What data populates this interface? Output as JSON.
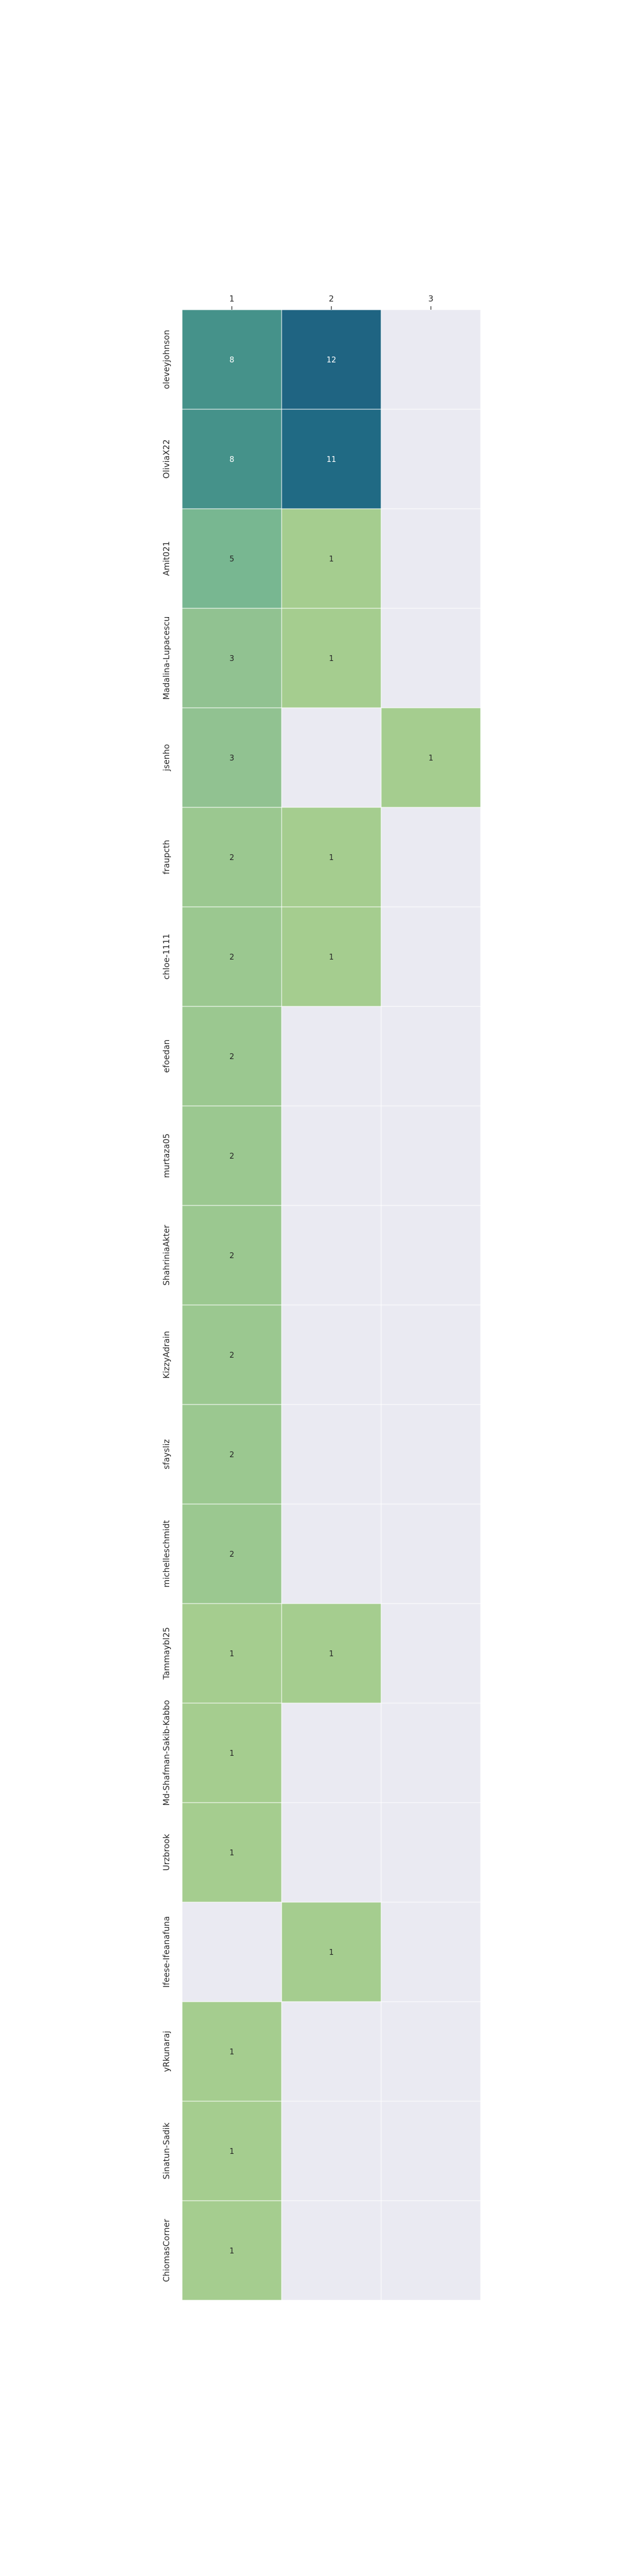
{
  "chart_data": {
    "type": "heatmap",
    "title": "",
    "xlabel": "",
    "ylabel": "",
    "x_categories": [
      "1",
      "2",
      "3"
    ],
    "y_categories": [
      "oleveyjohnson",
      "OliviaX22",
      "Amit021",
      "Madalina-Lupacescu",
      "jsenho",
      "fraupcth",
      "chloe-1111",
      "efoedan",
      "murtaza05",
      "ShahriniaAkter",
      "KizzyAdrain",
      "sfaysliz",
      "michelleschmidt",
      "Tammaybl25",
      "Md-Shafman-Sakib-Kabbo",
      "Urzbrook",
      "Ifeese-Ifeanafuna",
      "yRkunaraj",
      "Sinatun-Sadik",
      "ChiomasCorner"
    ],
    "values": [
      [
        8,
        12,
        null
      ],
      [
        8,
        11,
        null
      ],
      [
        5,
        1,
        null
      ],
      [
        3,
        1,
        null
      ],
      [
        3,
        null,
        1
      ],
      [
        2,
        1,
        null
      ],
      [
        2,
        1,
        null
      ],
      [
        2,
        null,
        null
      ],
      [
        2,
        null,
        null
      ],
      [
        2,
        null,
        null
      ],
      [
        2,
        null,
        null
      ],
      [
        2,
        null,
        null
      ],
      [
        2,
        null,
        null
      ],
      [
        1,
        1,
        null
      ],
      [
        1,
        null,
        null
      ],
      [
        1,
        null,
        null
      ],
      [
        null,
        1,
        null
      ],
      [
        1,
        null,
        null
      ],
      [
        1,
        null,
        null
      ],
      [
        1,
        null,
        null
      ]
    ],
    "colormap": [
      "#a5cd8f",
      "#93c391",
      "#7dba91",
      "#5fa890",
      "#3f8d89",
      "#216f85",
      "#1f6482"
    ],
    "empty_color": "#eaeaf2",
    "grid": false,
    "legend": "none",
    "x_ticks_position": "top"
  }
}
